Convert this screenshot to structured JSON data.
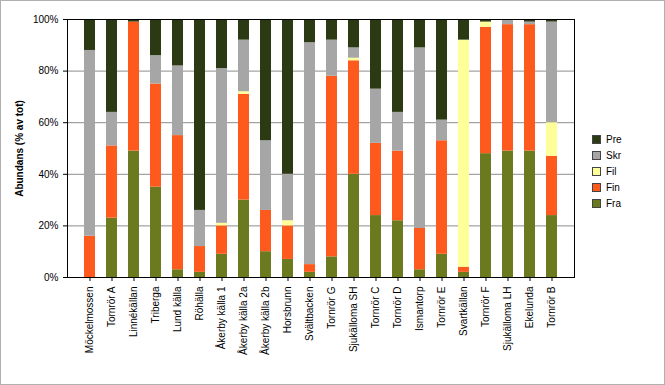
{
  "chart_data": {
    "type": "bar",
    "stacked": true,
    "grid": true,
    "legend": "right",
    "y_label": "Abundans (% av tot)",
    "categories": [
      "Möckelmossen",
      "Tornrör A",
      "Linnékällan",
      "Triberga",
      "Lund källa",
      "Röhälla",
      "Åkerby källa 1",
      "Åkerby källa 2a",
      "Åkerby källa 2b",
      "Horsbrunn",
      "Svältbacken",
      "Tornrör G",
      "Sjukälloma SH",
      "Tornrör C",
      "Tornrör D",
      "Ismantorp",
      "Tornrör E",
      "Svartkällan",
      "Tornrör F",
      "Sjukälloma LH",
      "Ekelunda",
      "Tornrör B"
    ],
    "series": [
      {
        "name": "Fra",
        "color": "#6b7a1e",
        "values": [
          0,
          23,
          49,
          35,
          3,
          2,
          9,
          30,
          10,
          7,
          2,
          8,
          40,
          24,
          22,
          3,
          9,
          2,
          48,
          49,
          49,
          24
        ]
      },
      {
        "name": "Fin",
        "color": "#ff5a1e",
        "values": [
          16,
          28,
          50,
          40,
          52,
          10,
          11,
          41,
          16,
          13,
          3,
          70,
          44,
          28,
          27,
          16,
          44,
          2,
          49,
          49,
          49,
          23
        ]
      },
      {
        "name": "Fil",
        "color": "#ffff99",
        "values": [
          0,
          0,
          0,
          0,
          0,
          0,
          1,
          1,
          0,
          2,
          0,
          0,
          1,
          0,
          0,
          0,
          0,
          88,
          2,
          0,
          0,
          13
        ]
      },
      {
        "name": "Skr",
        "color": "#a6a6a6",
        "values": [
          72,
          13,
          0,
          11,
          27,
          14,
          60,
          20,
          27,
          18,
          86,
          14,
          4,
          21,
          15,
          70,
          8,
          0,
          0,
          2,
          1,
          39
        ]
      },
      {
        "name": "Pre",
        "color": "#2b3a12",
        "values": [
          12,
          36,
          1,
          14,
          18,
          74,
          19,
          8,
          47,
          60,
          9,
          8,
          11,
          27,
          36,
          11,
          39,
          8,
          1,
          0,
          1,
          1
        ]
      }
    ],
    "ylim": [
      0,
      100
    ],
    "yticks": [
      {
        "value": 0,
        "label": "0%"
      },
      {
        "value": 20,
        "label": "20%"
      },
      {
        "value": 40,
        "label": "40%"
      },
      {
        "value": 60,
        "label": "60%"
      },
      {
        "value": 80,
        "label": "80%"
      },
      {
        "value": 100,
        "label": "100%"
      }
    ]
  }
}
